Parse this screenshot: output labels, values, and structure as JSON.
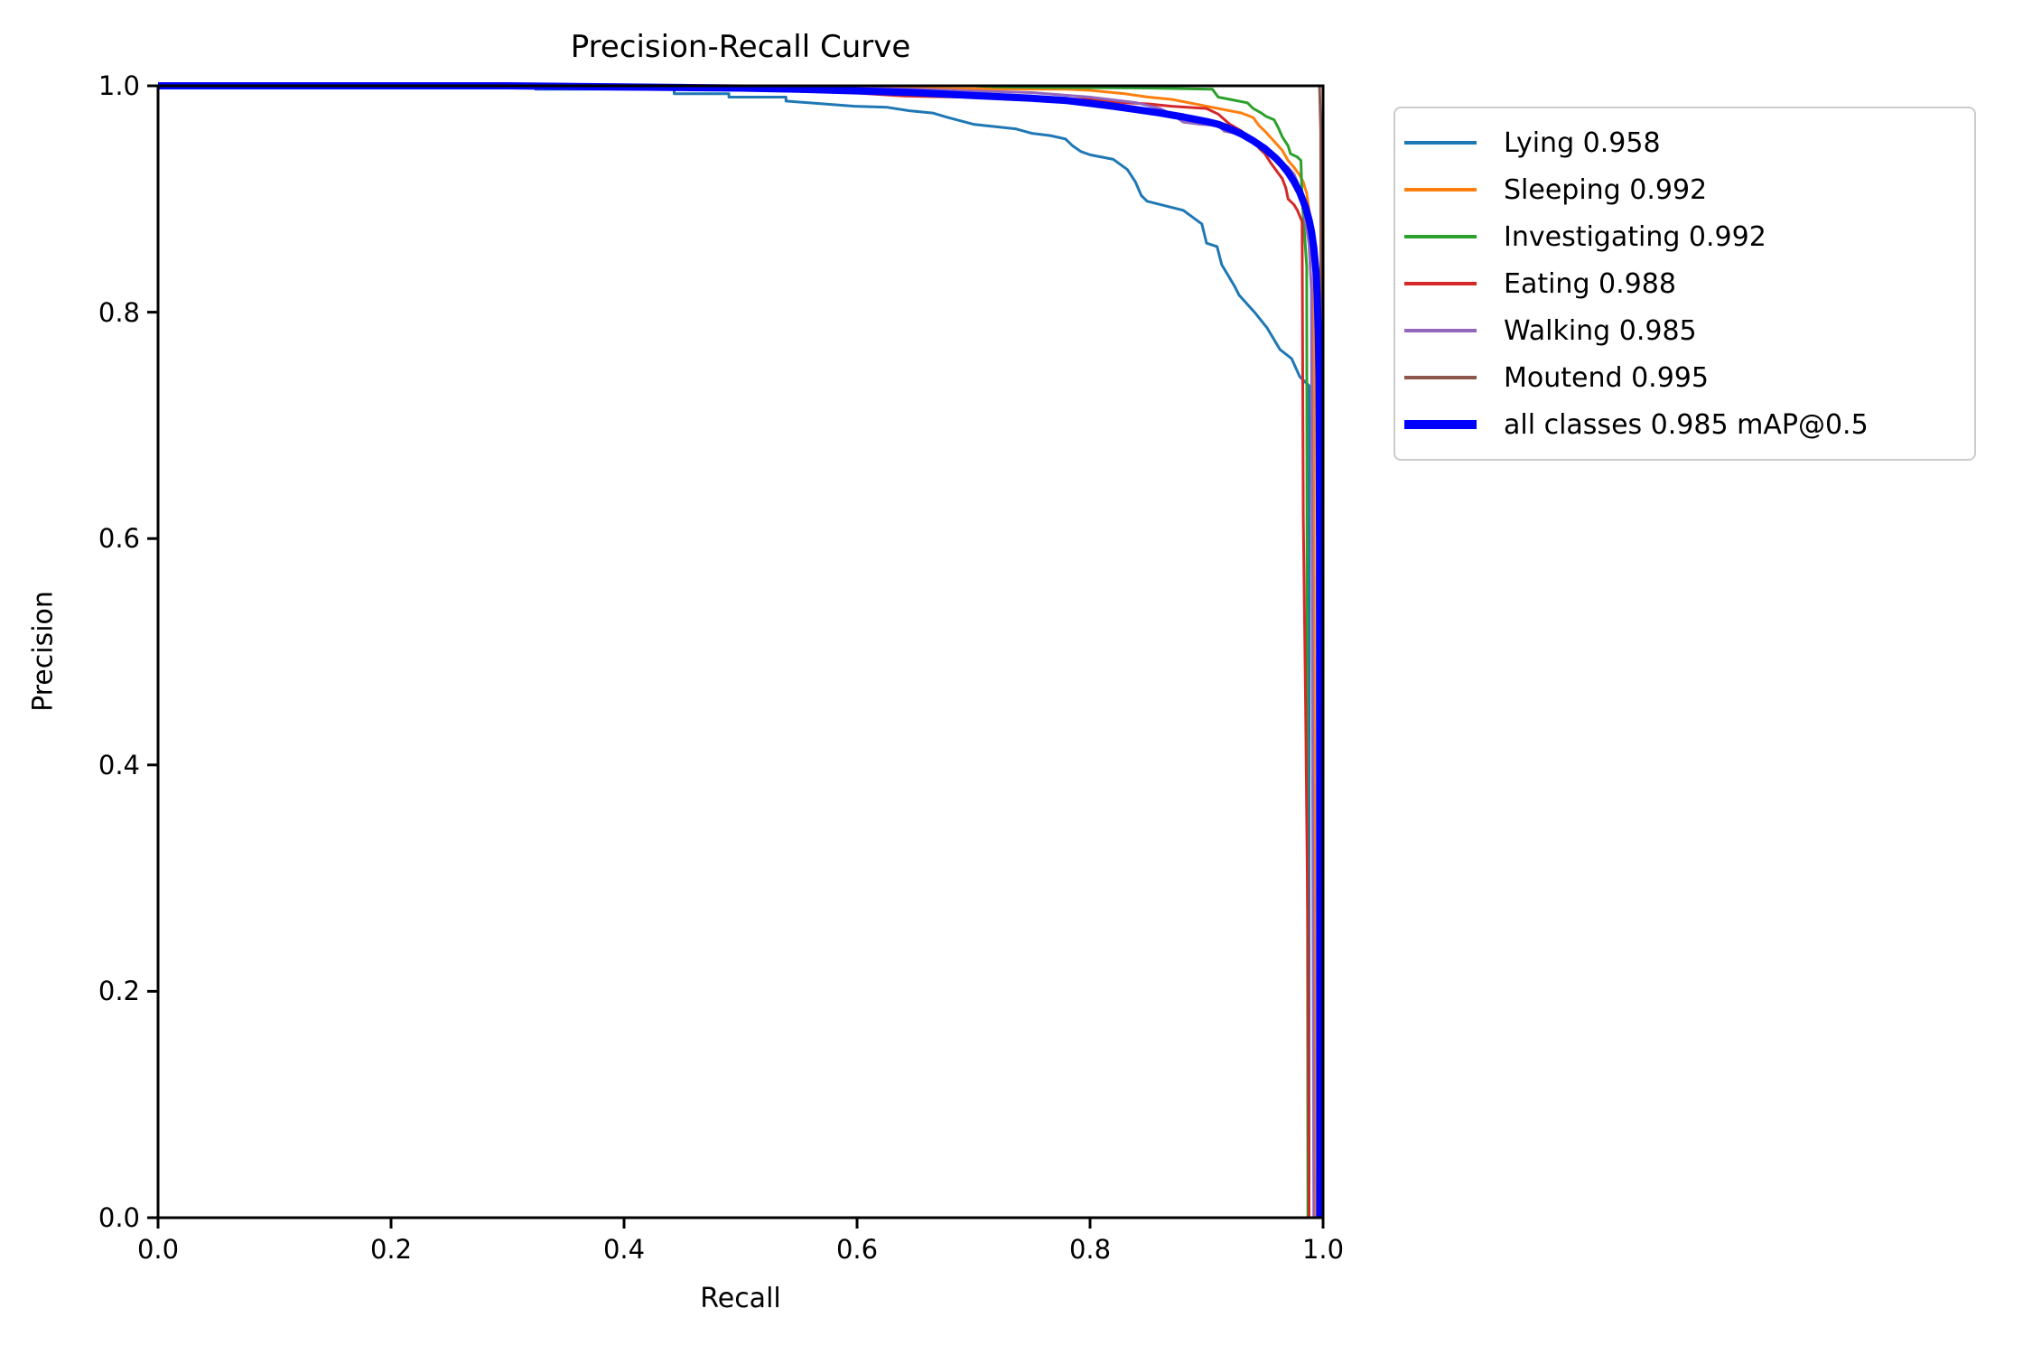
{
  "chart_data": {
    "type": "line",
    "title": "Precision-Recall Curve",
    "xlabel": "Recall",
    "ylabel": "Precision",
    "xlim": [
      0.0,
      1.0
    ],
    "ylim": [
      0.0,
      1.0
    ],
    "xticks": [
      "0.0",
      "0.2",
      "0.4",
      "0.6",
      "0.8",
      "1.0"
    ],
    "yticks": [
      "0.0",
      "0.2",
      "0.4",
      "0.6",
      "0.8",
      "1.0"
    ],
    "grid": false,
    "legend_position": "upper right outside axes",
    "axis_color": "#000000",
    "series": [
      {
        "name": "Lying",
        "ap": 0.958,
        "label": "Lying 0.958",
        "color": "#1f77b4",
        "emphasis": false,
        "points": [
          [
            0,
            1
          ],
          [
            0.324,
            1
          ],
          [
            0.324,
            0.997
          ],
          [
            0.443,
            0.997
          ],
          [
            0.443,
            0.993
          ],
          [
            0.49,
            0.993
          ],
          [
            0.49,
            0.99
          ],
          [
            0.539,
            0.99
          ],
          [
            0.539,
            0.9865
          ],
          [
            0.598,
            0.982
          ],
          [
            0.626,
            0.981
          ],
          [
            0.645,
            0.978
          ],
          [
            0.665,
            0.976
          ],
          [
            0.678,
            0.972
          ],
          [
            0.7,
            0.966
          ],
          [
            0.736,
            0.962
          ],
          [
            0.75,
            0.958
          ],
          [
            0.766,
            0.956
          ],
          [
            0.779,
            0.953
          ],
          [
            0.785,
            0.947
          ],
          [
            0.792,
            0.942
          ],
          [
            0.8,
            0.939
          ],
          [
            0.82,
            0.935
          ],
          [
            0.832,
            0.926
          ],
          [
            0.839,
            0.915
          ],
          [
            0.844,
            0.903
          ],
          [
            0.849,
            0.898
          ],
          [
            0.88,
            0.89
          ],
          [
            0.896,
            0.878
          ],
          [
            0.9,
            0.861
          ],
          [
            0.909,
            0.858
          ],
          [
            0.913,
            0.842
          ],
          [
            0.924,
            0.823
          ],
          [
            0.928,
            0.815
          ],
          [
            0.942,
            0.799
          ],
          [
            0.952,
            0.786
          ],
          [
            0.963,
            0.767
          ],
          [
            0.973,
            0.759
          ],
          [
            0.98,
            0.743
          ],
          [
            0.988,
            0.735
          ],
          [
            0.988,
            0
          ]
        ]
      },
      {
        "name": "Sleeping",
        "ap": 0.992,
        "label": "Sleeping 0.992",
        "color": "#ff7f0e",
        "emphasis": false,
        "points": [
          [
            0,
            1
          ],
          [
            0.55,
            1
          ],
          [
            0.56,
            0.998
          ],
          [
            0.78,
            0.997
          ],
          [
            0.8,
            0.996
          ],
          [
            0.83,
            0.993
          ],
          [
            0.85,
            0.99
          ],
          [
            0.87,
            0.988
          ],
          [
            0.89,
            0.984
          ],
          [
            0.9,
            0.982
          ],
          [
            0.92,
            0.978
          ],
          [
            0.93,
            0.976
          ],
          [
            0.94,
            0.972
          ],
          [
            0.945,
            0.965
          ],
          [
            0.95,
            0.96
          ],
          [
            0.958,
            0.951
          ],
          [
            0.965,
            0.943
          ],
          [
            0.97,
            0.934
          ],
          [
            0.975,
            0.928
          ],
          [
            0.98,
            0.921
          ],
          [
            0.983,
            0.915
          ],
          [
            0.986,
            0.905
          ],
          [
            0.988,
            0.89
          ],
          [
            0.99,
            0.878
          ],
          [
            0.992,
            0.858
          ],
          [
            0.993,
            0
          ]
        ]
      },
      {
        "name": "Investigating",
        "ap": 0.992,
        "label": "Investigating 0.992",
        "color": "#2ca02c",
        "emphasis": false,
        "points": [
          [
            0,
            1
          ],
          [
            0.7,
            1
          ],
          [
            0.72,
            0.999
          ],
          [
            0.85,
            0.998
          ],
          [
            0.905,
            0.997
          ],
          [
            0.91,
            0.99
          ],
          [
            0.92,
            0.988
          ],
          [
            0.935,
            0.985
          ],
          [
            0.94,
            0.98
          ],
          [
            0.947,
            0.976
          ],
          [
            0.951,
            0.973
          ],
          [
            0.958,
            0.97
          ],
          [
            0.962,
            0.962
          ],
          [
            0.965,
            0.955
          ],
          [
            0.97,
            0.947
          ],
          [
            0.972,
            0.94
          ],
          [
            0.978,
            0.937
          ],
          [
            0.981,
            0.934
          ],
          [
            0.982,
            0.9
          ],
          [
            0.984,
            0.87
          ],
          [
            0.986,
            0.84
          ],
          [
            0.987,
            0
          ]
        ]
      },
      {
        "name": "Eating",
        "ap": 0.988,
        "label": "Eating 0.988",
        "color": "#d62728",
        "emphasis": false,
        "points": [
          [
            0,
            1
          ],
          [
            0.45,
            0.999
          ],
          [
            0.5,
            0.998
          ],
          [
            0.55,
            0.997
          ],
          [
            0.64,
            0.991
          ],
          [
            0.8,
            0.988
          ],
          [
            0.83,
            0.985
          ],
          [
            0.85,
            0.984
          ],
          [
            0.87,
            0.982
          ],
          [
            0.9,
            0.98
          ],
          [
            0.91,
            0.975
          ],
          [
            0.92,
            0.966
          ],
          [
            0.93,
            0.96
          ],
          [
            0.935,
            0.955
          ],
          [
            0.94,
            0.952
          ],
          [
            0.945,
            0.945
          ],
          [
            0.95,
            0.94
          ],
          [
            0.955,
            0.932
          ],
          [
            0.96,
            0.925
          ],
          [
            0.965,
            0.918
          ],
          [
            0.968,
            0.91
          ],
          [
            0.97,
            0.9
          ],
          [
            0.975,
            0.895
          ],
          [
            0.978,
            0.89
          ],
          [
            0.982,
            0.88
          ],
          [
            0.983,
            0.62
          ],
          [
            0.985,
            0.45
          ],
          [
            0.987,
            0.25
          ],
          [
            0.988,
            0
          ]
        ]
      },
      {
        "name": "Walking",
        "ap": 0.985,
        "label": "Walking 0.985",
        "color": "#9467bd",
        "emphasis": false,
        "points": [
          [
            0,
            1
          ],
          [
            0.55,
            0.999
          ],
          [
            0.65,
            0.997
          ],
          [
            0.75,
            0.994
          ],
          [
            0.8,
            0.99
          ],
          [
            0.84,
            0.985
          ],
          [
            0.86,
            0.98
          ],
          [
            0.87,
            0.975
          ],
          [
            0.88,
            0.968
          ],
          [
            0.895,
            0.966
          ],
          [
            0.91,
            0.965
          ],
          [
            0.915,
            0.96
          ],
          [
            0.93,
            0.957
          ],
          [
            0.94,
            0.952
          ],
          [
            0.95,
            0.945
          ],
          [
            0.955,
            0.94
          ],
          [
            0.96,
            0.936
          ],
          [
            0.965,
            0.932
          ],
          [
            0.97,
            0.928
          ],
          [
            0.975,
            0.922
          ],
          [
            0.978,
            0.915
          ],
          [
            0.982,
            0.9
          ],
          [
            0.985,
            0.88
          ],
          [
            0.988,
            0.86
          ],
          [
            0.99,
            0.82
          ],
          [
            0.992,
            0
          ]
        ]
      },
      {
        "name": "Moutend",
        "ap": 0.995,
        "label": "Moutend 0.995",
        "color": "#8c564b",
        "emphasis": false,
        "points": [
          [
            0,
            1
          ],
          [
            0.997,
            1
          ],
          [
            0.998,
            0.96
          ],
          [
            0.999,
            0
          ]
        ]
      },
      {
        "name": "all classes",
        "ap": 0.985,
        "label": "all classes 0.985 mAP@0.5",
        "color": "#0000ff",
        "emphasis": true,
        "points": [
          [
            0,
            1
          ],
          [
            0.3,
            1
          ],
          [
            0.35,
            0.9995
          ],
          [
            0.4,
            0.999
          ],
          [
            0.45,
            0.9985
          ],
          [
            0.5,
            0.998
          ],
          [
            0.55,
            0.997
          ],
          [
            0.6,
            0.9955
          ],
          [
            0.65,
            0.994
          ],
          [
            0.7,
            0.9915
          ],
          [
            0.75,
            0.989
          ],
          [
            0.78,
            0.987
          ],
          [
            0.8,
            0.9845
          ],
          [
            0.82,
            0.982
          ],
          [
            0.84,
            0.979
          ],
          [
            0.86,
            0.976
          ],
          [
            0.88,
            0.9725
          ],
          [
            0.9,
            0.9685
          ],
          [
            0.91,
            0.966
          ],
          [
            0.92,
            0.962
          ],
          [
            0.93,
            0.9575
          ],
          [
            0.94,
            0.9515
          ],
          [
            0.95,
            0.9445
          ],
          [
            0.96,
            0.9355
          ],
          [
            0.965,
            0.93
          ],
          [
            0.97,
            0.9235
          ],
          [
            0.975,
            0.9155
          ],
          [
            0.98,
            0.906
          ],
          [
            0.985,
            0.8925
          ],
          [
            0.988,
            0.8815
          ],
          [
            0.99,
            0.8715
          ],
          [
            0.992,
            0.857
          ],
          [
            0.994,
            0.835
          ],
          [
            0.995,
            0.815
          ],
          [
            0.996,
            0.78
          ],
          [
            0.9965,
            0.74
          ],
          [
            0.997,
            0.6
          ],
          [
            0.9972,
            0
          ]
        ]
      }
    ]
  }
}
